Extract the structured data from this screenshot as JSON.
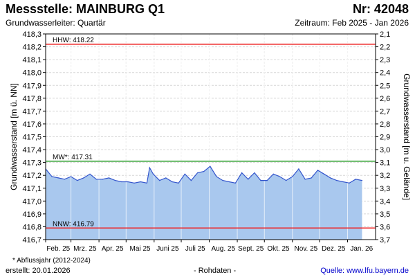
{
  "header": {
    "title": "Messstelle: MAINBURG Q1",
    "number": "Nr: 42048",
    "subtitle": "Grundwasserleiter: Quartär",
    "period": "Zeitraum: Feb 2025 - Jan 2026"
  },
  "footer": {
    "footnote": "* Abflussjahr (2012-2024)",
    "created": "erstellt:  20.01.2026",
    "rawdata": "- Rohdaten -",
    "source": "Quelle:  www.lfu.bayern.de"
  },
  "colors": {
    "fill": "#a9c8ee",
    "line": "#3355cc",
    "hhw": "#ee2222",
    "mw": "#229922",
    "nnw": "#ee2222",
    "grid": "#d6d6d6"
  },
  "chart_data": {
    "type": "area",
    "title": "",
    "ylabel": "Grundwasserstand [m ü. NN]",
    "ylabel_right": "Grundwasserstand [m u. Gelände]",
    "ylim": [
      416.7,
      418.3
    ],
    "ylim_right": [
      2.1,
      3.7
    ],
    "grid": true,
    "yticks": [
      "418,3",
      "418,2",
      "418,1",
      "418,0",
      "417,9",
      "417,8",
      "417,7",
      "417,6",
      "417,5",
      "417,4",
      "417,3",
      "417,2",
      "417,1",
      "417,0",
      "416,9",
      "416,8",
      "416,7"
    ],
    "yticks_right": [
      "2,1",
      "2,2",
      "2,3",
      "2,4",
      "2,5",
      "2,6",
      "2,7",
      "2,8",
      "2,9",
      "3,0",
      "3,1",
      "3,2",
      "3,3",
      "3,4",
      "3,5",
      "3,6",
      "3,7"
    ],
    "xticks": [
      "Feb. 25",
      "Mrz. 25",
      "Apr. 25",
      "Mai 25",
      "Juni 25",
      "Juli 25",
      "Aug. 25",
      "Sept. 25",
      "Okt. 25",
      "Nov. 25",
      "Dez. 25",
      "Jan. 26"
    ],
    "reference_lines": [
      {
        "label": "HHW: 418.22",
        "value": 418.22,
        "color": "hhw"
      },
      {
        "label": "MW*: 417.31",
        "value": 417.31,
        "color": "mw"
      },
      {
        "label": "NNW: 416.79",
        "value": 416.79,
        "color": "nnw"
      }
    ],
    "x": [
      "2025-02-01",
      "2025-02-08",
      "2025-02-15",
      "2025-02-22",
      "2025-03-01",
      "2025-03-08",
      "2025-03-15",
      "2025-03-22",
      "2025-03-29",
      "2025-04-05",
      "2025-04-12",
      "2025-04-19",
      "2025-04-26",
      "2025-05-03",
      "2025-05-10",
      "2025-05-17",
      "2025-05-24",
      "2025-05-27",
      "2025-05-31",
      "2025-06-07",
      "2025-06-14",
      "2025-06-21",
      "2025-06-28",
      "2025-07-05",
      "2025-07-12",
      "2025-07-19",
      "2025-07-26",
      "2025-08-02",
      "2025-08-09",
      "2025-08-16",
      "2025-08-23",
      "2025-08-30",
      "2025-09-06",
      "2025-09-13",
      "2025-09-20",
      "2025-09-27",
      "2025-10-04",
      "2025-10-11",
      "2025-10-18",
      "2025-10-25",
      "2025-11-01",
      "2025-11-08",
      "2025-11-15",
      "2025-11-22",
      "2025-11-29",
      "2025-12-06",
      "2025-12-13",
      "2025-12-20",
      "2025-12-27",
      "2026-01-03",
      "2026-01-10",
      "2026-01-17"
    ],
    "values": [
      417.25,
      417.19,
      417.18,
      417.17,
      417.19,
      417.16,
      417.18,
      417.21,
      417.17,
      417.17,
      417.18,
      417.16,
      417.15,
      417.15,
      417.14,
      417.15,
      417.14,
      417.26,
      417.21,
      417.16,
      417.18,
      417.15,
      417.14,
      417.21,
      417.16,
      417.22,
      417.23,
      417.27,
      417.19,
      417.16,
      417.15,
      417.14,
      417.22,
      417.17,
      417.22,
      417.16,
      417.16,
      417.21,
      417.19,
      417.16,
      417.19,
      417.25,
      417.17,
      417.18,
      417.24,
      417.21,
      417.18,
      417.16,
      417.15,
      417.14,
      417.17,
      417.16
    ]
  }
}
